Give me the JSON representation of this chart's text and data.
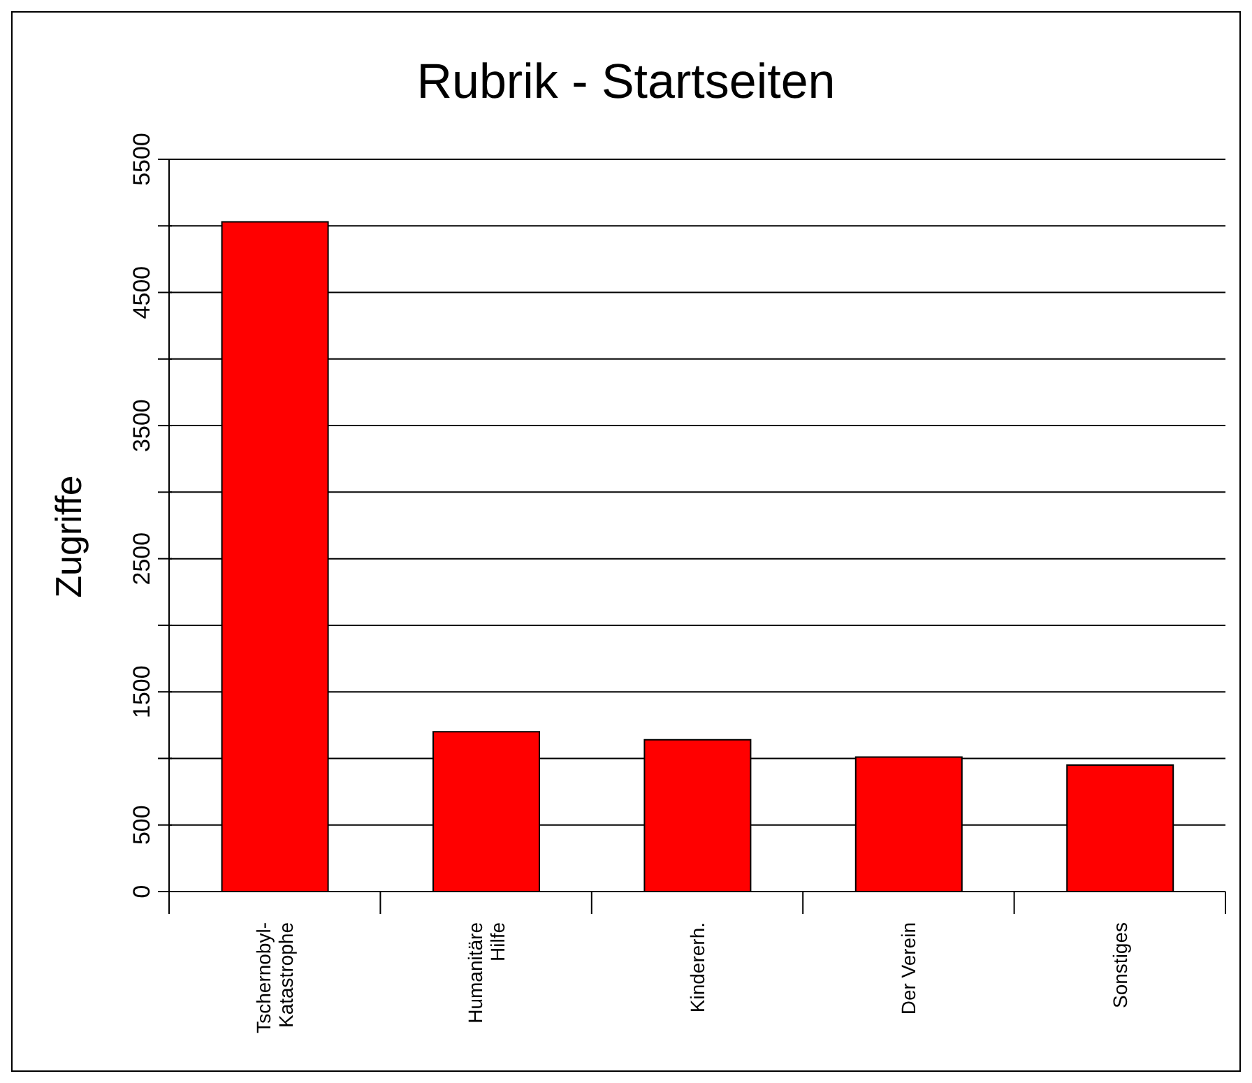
{
  "chart_data": {
    "type": "bar",
    "title": "Rubrik - Startseiten",
    "ylabel": "Zugriffe",
    "categories": [
      "Tschernobyl-\nKatastrophe",
      "Humanitäre\nHilfe",
      "Kindererh.",
      "Der Verein",
      "Sonstiges"
    ],
    "values": [
      5030,
      1200,
      1140,
      1010,
      950
    ],
    "color": "#ff0000",
    "ylim": [
      0,
      5500
    ],
    "yticks": [
      0,
      500,
      {
        "value": 1000,
        "label": null
      },
      1500,
      {
        "value": 2000,
        "label": null
      },
      2500,
      {
        "value": 3000,
        "label": null
      },
      3500,
      {
        "value": 4000,
        "label": null
      },
      4500,
      {
        "value": 5000,
        "label": null
      },
      5500
    ],
    "grid": "y",
    "legend": false
  }
}
